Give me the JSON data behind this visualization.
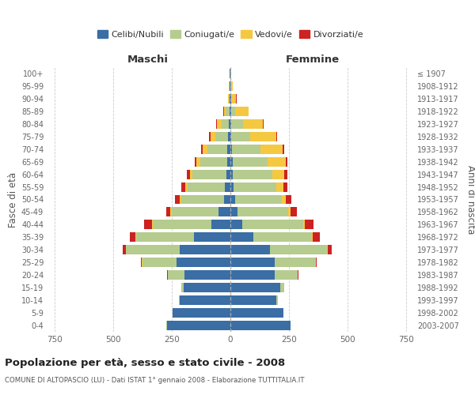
{
  "age_groups": [
    "100+",
    "95-99",
    "90-94",
    "85-89",
    "80-84",
    "75-79",
    "70-74",
    "65-69",
    "60-64",
    "55-59",
    "50-54",
    "45-49",
    "40-44",
    "35-39",
    "30-34",
    "25-29",
    "20-24",
    "15-19",
    "10-14",
    "5-9",
    "0-4"
  ],
  "birth_years": [
    "≤ 1907",
    "1908-1912",
    "1913-1917",
    "1918-1922",
    "1923-1927",
    "1928-1932",
    "1933-1937",
    "1938-1942",
    "1943-1947",
    "1948-1952",
    "1953-1957",
    "1958-1962",
    "1963-1967",
    "1968-1972",
    "1973-1977",
    "1978-1982",
    "1983-1987",
    "1988-1992",
    "1993-1997",
    "1998-2002",
    "2003-2007"
  ],
  "maschi": {
    "celibi": [
      2,
      2,
      3,
      5,
      8,
      10,
      12,
      15,
      18,
      22,
      28,
      50,
      80,
      155,
      215,
      230,
      195,
      200,
      215,
      245,
      270
    ],
    "coniugati": [
      2,
      3,
      5,
      15,
      30,
      55,
      85,
      115,
      145,
      162,
      182,
      200,
      250,
      248,
      230,
      145,
      72,
      10,
      5,
      2,
      2
    ],
    "vedovi": [
      0,
      1,
      3,
      8,
      18,
      20,
      22,
      14,
      10,
      8,
      6,
      5,
      3,
      2,
      2,
      2,
      1,
      0,
      0,
      0,
      0
    ],
    "divorziati": [
      0,
      0,
      0,
      2,
      5,
      5,
      5,
      8,
      12,
      18,
      22,
      18,
      35,
      25,
      12,
      4,
      2,
      0,
      0,
      0,
      0
    ]
  },
  "femmine": {
    "nubili": [
      1,
      1,
      2,
      3,
      5,
      5,
      7,
      9,
      10,
      15,
      20,
      30,
      50,
      98,
      168,
      190,
      190,
      212,
      196,
      225,
      255
    ],
    "coniugate": [
      1,
      3,
      5,
      18,
      48,
      80,
      120,
      150,
      170,
      180,
      198,
      215,
      260,
      250,
      245,
      170,
      96,
      16,
      7,
      2,
      2
    ],
    "vedove": [
      2,
      5,
      18,
      55,
      85,
      110,
      95,
      76,
      50,
      30,
      18,
      13,
      7,
      4,
      3,
      3,
      2,
      0,
      0,
      0,
      0
    ],
    "divorziate": [
      0,
      0,
      1,
      2,
      4,
      5,
      7,
      9,
      13,
      19,
      25,
      27,
      36,
      30,
      15,
      4,
      2,
      0,
      0,
      0,
      0
    ]
  },
  "colors": {
    "celibi": "#3a6ea5",
    "coniugati": "#b5cc8e",
    "vedovi": "#f5c842",
    "divorziati": "#cc2222"
  },
  "xlim": 780,
  "title": "Popolazione per età, sesso e stato civile - 2008",
  "subtitle": "COMUNE DI ALTOPASCIO (LU) - Dati ISTAT 1° gennaio 2008 - Elaborazione TUTTITALIA.IT",
  "ylabel_left": "Fasce di età",
  "ylabel_right": "Anni di nascita",
  "xlabel_maschi": "Maschi",
  "xlabel_femmine": "Femmine"
}
